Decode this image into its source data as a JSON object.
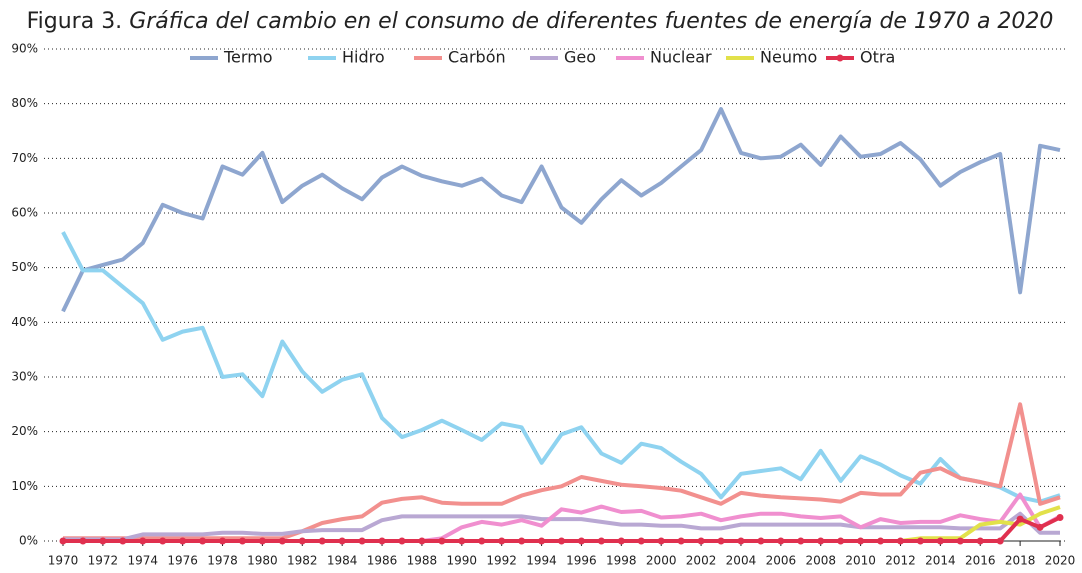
{
  "chart_data": {
    "type": "line",
    "figure_label": "Figura 3.",
    "title": "Gráfica del cambio en el consumo de diferentes fuentes de energía de 1970 a 2020",
    "x": [
      1970,
      1971,
      1972,
      1973,
      1974,
      1975,
      1976,
      1977,
      1978,
      1979,
      1980,
      1981,
      1982,
      1983,
      1984,
      1985,
      1986,
      1987,
      1988,
      1989,
      1990,
      1991,
      1992,
      1993,
      1994,
      1995,
      1996,
      1997,
      1998,
      1999,
      2000,
      2001,
      2002,
      2003,
      2004,
      2005,
      2006,
      2007,
      2008,
      2009,
      2010,
      2011,
      2012,
      2013,
      2014,
      2015,
      2016,
      2017,
      2018,
      2019,
      2020
    ],
    "xlim": [
      1970,
      2020
    ],
    "xticks": [
      1970,
      1972,
      1974,
      1976,
      1978,
      1980,
      1982,
      1984,
      1986,
      1988,
      1990,
      1992,
      1994,
      1996,
      1998,
      2000,
      2002,
      2004,
      2006,
      2008,
      2010,
      2012,
      2014,
      2016,
      2018,
      2020
    ],
    "ylim": [
      0,
      90
    ],
    "yticks": [
      {
        "value": 0,
        "label": "0%"
      },
      {
        "value": 10,
        "label": "10%"
      },
      {
        "value": 20,
        "label": "20%"
      },
      {
        "value": 30,
        "label": "30%"
      },
      {
        "value": 40,
        "label": "40%"
      },
      {
        "value": 50,
        "label": "50%"
      },
      {
        "value": 60,
        "label": "60%"
      },
      {
        "value": 70,
        "label": "70%"
      },
      {
        "value": 80,
        "label": "80%"
      },
      {
        "value": 90,
        "label": "90%"
      }
    ],
    "grid": true,
    "legend": "top",
    "series": [
      {
        "name": "Termo",
        "color": "#8ea6cf",
        "values": [
          42,
          49.5,
          50.5,
          51.5,
          54.5,
          61.5,
          60,
          59,
          68.5,
          67,
          71,
          62,
          65,
          67,
          64.5,
          62.5,
          66.5,
          68.5,
          66.8,
          65.8,
          65,
          66.3,
          63.2,
          62,
          68.5,
          61,
          58.2,
          62.5,
          66,
          63.2,
          65.5,
          68.5,
          71.5,
          79,
          71,
          70,
          70.3,
          72.5,
          68.8,
          74,
          70.3,
          70.8,
          72.8,
          69.8,
          65,
          67.5,
          69.3,
          70.8,
          45.5,
          72.3,
          71.5
        ]
      },
      {
        "name": "Hidro",
        "color": "#8fd3f0",
        "values": [
          56.5,
          49.5,
          49.5,
          46.5,
          43.5,
          36.8,
          38.3,
          39,
          30,
          30.5,
          26.5,
          36.5,
          31,
          27.3,
          29.5,
          30.5,
          22.5,
          19,
          20.3,
          22,
          20.3,
          18.5,
          21.5,
          20.8,
          14.3,
          19.5,
          20.8,
          16,
          14.3,
          17.8,
          17,
          14.5,
          12.3,
          8,
          12.3,
          12.8,
          13.3,
          11.3,
          16.5,
          11,
          15.5,
          14,
          12,
          10.5,
          15,
          11.5,
          10.8,
          9.8,
          8,
          7.2,
          8.4
        ]
      },
      {
        "name": "Carbón",
        "color": "#f2908e",
        "values": [
          0.5,
          0.5,
          0.5,
          0.5,
          0.5,
          0.5,
          0.5,
          0.5,
          0.5,
          0.5,
          0.5,
          0.5,
          1.8,
          3.3,
          4,
          4.5,
          7,
          7.7,
          8,
          7,
          6.8,
          6.8,
          6.8,
          8.3,
          9.3,
          10,
          11.7,
          11,
          10.3,
          10,
          9.7,
          9.2,
          8,
          6.8,
          8.8,
          8.3,
          8,
          7.8,
          7.6,
          7.2,
          8.8,
          8.5,
          8.5,
          12.5,
          13.3,
          11.5,
          10.8,
          10,
          25,
          6.8,
          8
        ]
      },
      {
        "name": "Geo",
        "color": "#b9a8d3",
        "values": [
          0.3,
          0.3,
          0.3,
          0.3,
          1.2,
          1.2,
          1.2,
          1.2,
          1.5,
          1.5,
          1.3,
          1.3,
          1.8,
          2,
          2,
          2,
          3.8,
          4.5,
          4.5,
          4.5,
          4.5,
          4.5,
          4.5,
          4.5,
          4,
          4,
          4,
          3.5,
          3,
          3,
          2.8,
          2.8,
          2.3,
          2.3,
          3,
          3,
          3,
          3,
          3,
          3,
          2.5,
          2.5,
          2.5,
          2.5,
          2.5,
          2.3,
          2.3,
          2.3,
          5,
          1.5,
          1.5
        ]
      },
      {
        "name": "Nuclear",
        "color": "#f08fcf",
        "values": [
          0,
          0,
          0,
          0,
          0,
          0,
          0,
          0,
          0,
          0,
          0,
          0,
          0,
          0,
          0,
          0,
          0,
          0,
          0,
          0.5,
          2.5,
          3.5,
          3,
          3.8,
          2.8,
          5.8,
          5.2,
          6.3,
          5.3,
          5.5,
          4.3,
          4.5,
          5,
          3.8,
          4.5,
          5,
          5,
          4.5,
          4.2,
          4.5,
          2.5,
          4,
          3.3,
          3.5,
          3.5,
          4.7,
          4,
          3.5,
          8.5,
          2.5,
          4.5
        ]
      },
      {
        "name": "Neumo",
        "color": "#e2e14a",
        "values": [
          null,
          null,
          null,
          null,
          null,
          null,
          null,
          null,
          null,
          null,
          null,
          null,
          null,
          null,
          null,
          null,
          null,
          null,
          null,
          null,
          null,
          null,
          null,
          null,
          null,
          null,
          null,
          null,
          null,
          null,
          null,
          null,
          null,
          null,
          null,
          null,
          null,
          null,
          null,
          null,
          null,
          null,
          0,
          0.5,
          0.5,
          0.5,
          3,
          3.5,
          3,
          5,
          6.2
        ]
      },
      {
        "name": "Otra",
        "color": "#e0304f",
        "markers": true,
        "values": [
          0,
          0,
          0,
          0,
          0,
          0,
          0,
          0,
          0,
          0,
          0,
          0,
          0,
          0,
          0,
          0,
          0,
          0,
          0,
          0,
          0,
          0,
          0,
          0,
          0,
          0,
          0,
          0,
          0,
          0,
          0,
          0,
          0,
          0,
          0,
          0,
          0,
          0,
          0,
          0,
          0,
          0,
          0,
          0,
          0,
          0,
          0,
          0,
          4,
          2.5,
          4.3
        ]
      }
    ]
  }
}
